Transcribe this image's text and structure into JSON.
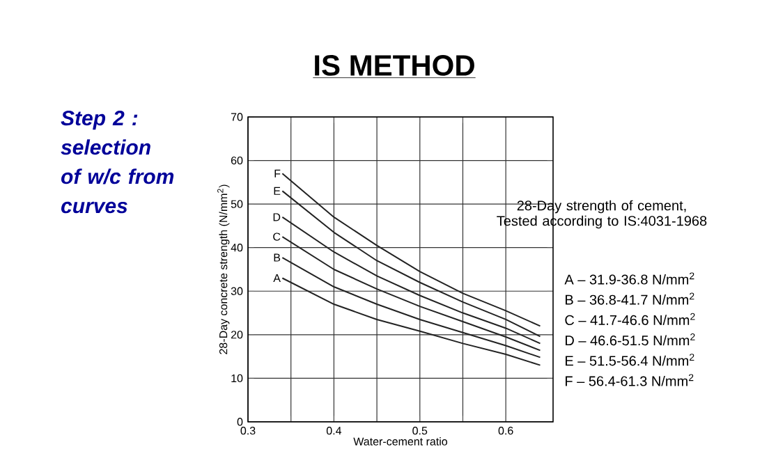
{
  "chart_data": {
    "type": "line",
    "title": "IS METHOD",
    "xlabel": "Water-cement ratio",
    "ylabel": "28-Day concrete strength (N/mm$^{2}$)",
    "xlim": [
      0.3,
      0.655
    ],
    "ylim": [
      0,
      70
    ],
    "xticks": [
      0.3,
      {
        "value": 0.35,
        "label": null
      },
      0.4,
      {
        "value": 0.45,
        "label": null
      },
      0.5,
      {
        "value": 0.55,
        "label": null
      },
      0.6
    ],
    "yticks": [
      0,
      10,
      20,
      30,
      40,
      50,
      60,
      70
    ],
    "grid": true,
    "marker": "none",
    "line_style": "solid",
    "x": [
      0.34,
      0.4,
      0.45,
      0.5,
      0.55,
      0.6,
      0.64
    ],
    "series": [
      {
        "name": "A",
        "color": "#222222",
        "values": [
          33,
          27,
          23.5,
          20.8,
          18,
          15.5,
          13
        ]
      },
      {
        "name": "B",
        "color": "#222222",
        "values": [
          37.7,
          31,
          27,
          23.5,
          20.5,
          17.5,
          14.8
        ]
      },
      {
        "name": "C",
        "color": "#222222",
        "values": [
          42.5,
          35,
          30.5,
          26.5,
          23,
          19.5,
          16.4
        ]
      },
      {
        "name": "D",
        "color": "#222222",
        "values": [
          47,
          39,
          33.5,
          29,
          25,
          21.5,
          18
        ]
      },
      {
        "name": "E",
        "color": "#222222",
        "values": [
          53,
          43.5,
          37,
          32,
          27.5,
          23.5,
          19.6
        ]
      },
      {
        "name": "F",
        "color": "#222222",
        "values": [
          57,
          47,
          40.5,
          34.5,
          29.5,
          25.5,
          22
        ]
      }
    ],
    "annotations": [
      "Step 2 : selection of w/c from curves",
      "28-Day strength of cement, Tested according to IS:4031-1968",
      "A – 31.9-36.8 N/mm$^{2}$",
      "B – 36.8-41.7 N/mm$^{2}$",
      "C – 41.7-46.6 N/mm$^{2}$",
      "D – 46.6-51.5 N/mm$^{2}$",
      "E – 51.5-56.4 N/mm$^{2}$",
      "F – 56.4-61.3 N/mm$^{2}$"
    ]
  }
}
